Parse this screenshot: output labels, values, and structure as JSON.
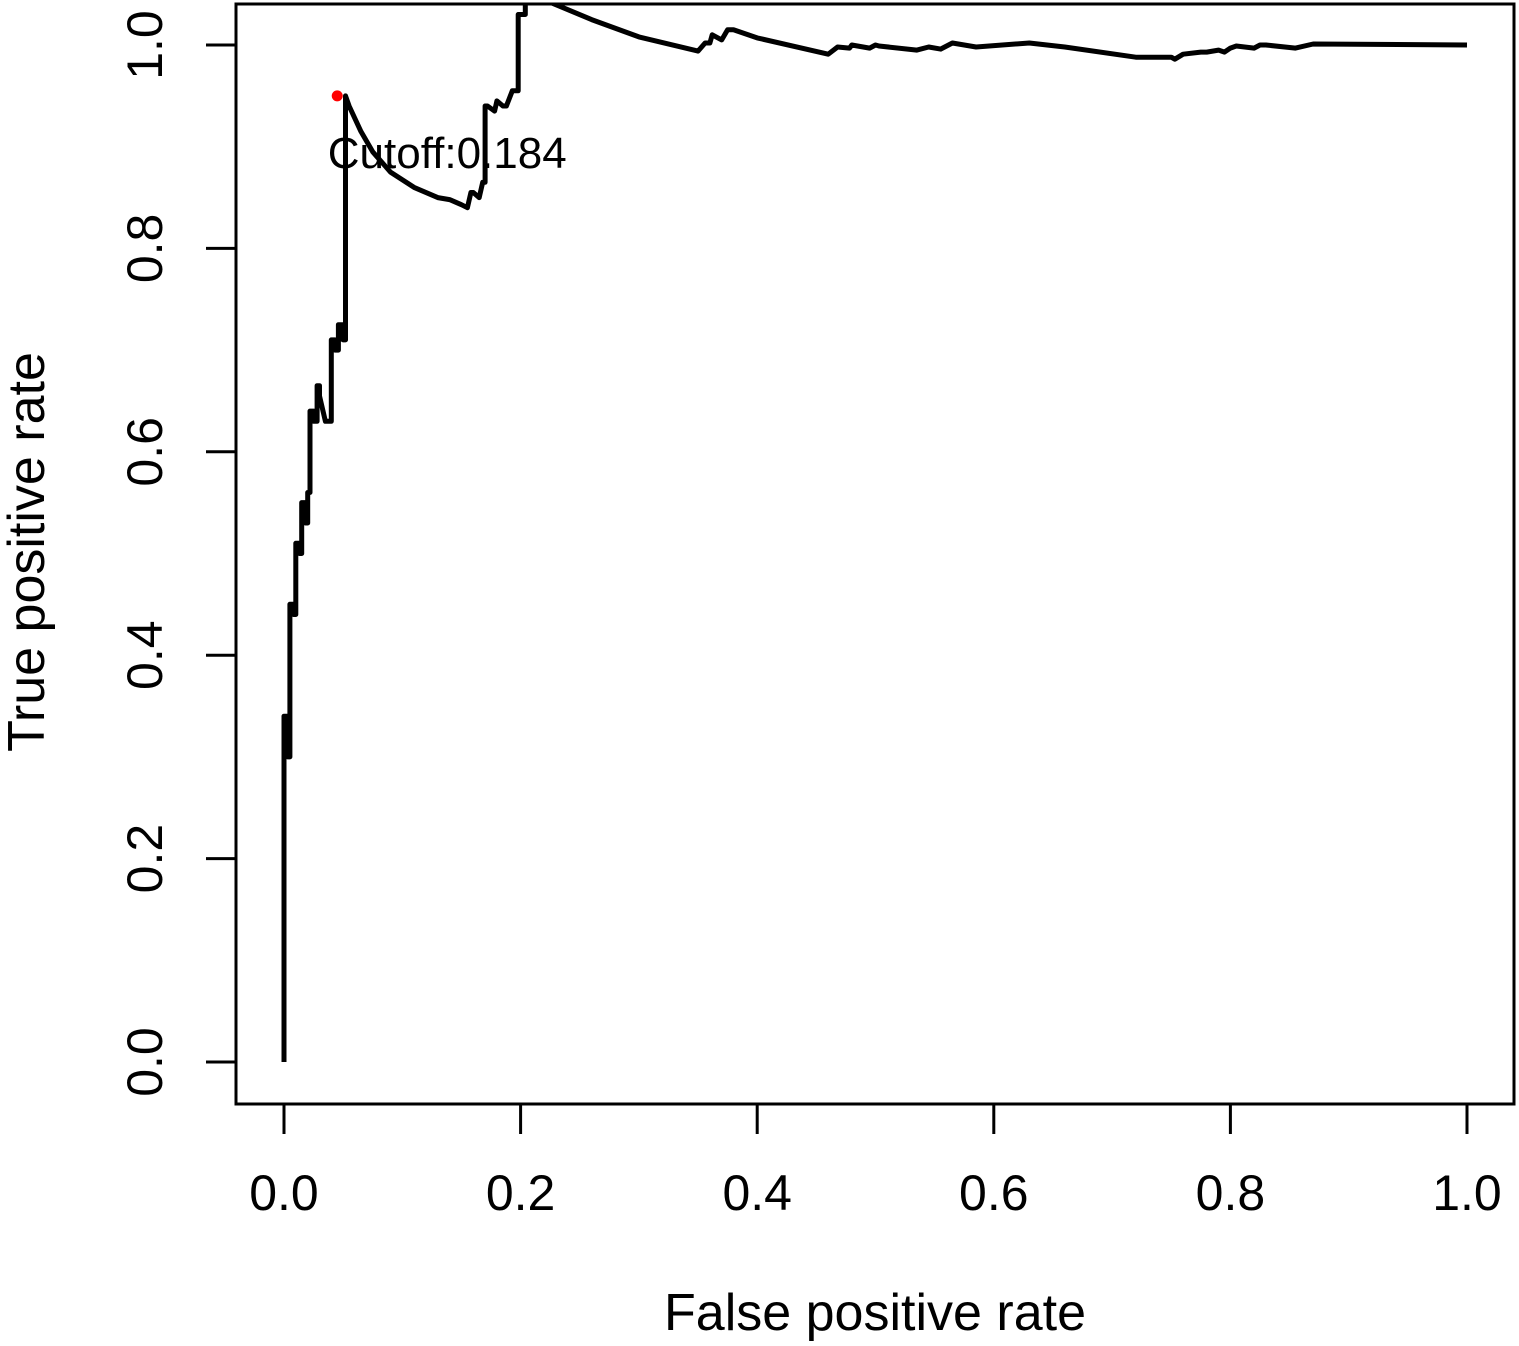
{
  "chart_data": {
    "type": "line",
    "title": "",
    "xlabel": "False positive rate",
    "ylabel": "True positive rate",
    "xlim": [
      0.0,
      1.0
    ],
    "ylim": [
      0.0,
      1.0
    ],
    "x_ticks": [
      "0.0",
      "0.2",
      "0.4",
      "0.6",
      "0.8",
      "1.0"
    ],
    "y_ticks": [
      "0.0",
      "0.2",
      "0.4",
      "0.6",
      "0.8",
      "1.0"
    ],
    "grid": false,
    "legend": "none",
    "line_color": "#000000",
    "series": [
      {
        "x": [
          0.0,
          0.0,
          0.003,
          0.003,
          0.005,
          0.005,
          0.008,
          0.008,
          0.01,
          0.01,
          0.013,
          0.013,
          0.015,
          0.015,
          0.018,
          0.018,
          0.02,
          0.02,
          0.022,
          0.022,
          0.025,
          0.025,
          0.028,
          0.028,
          0.03,
          0.03,
          0.035,
          0.04,
          0.04,
          0.043,
          0.043,
          0.046,
          0.046,
          0.05,
          0.05,
          0.052,
          0.052,
          0.055,
          0.065,
          0.075,
          0.09,
          0.11,
          0.13,
          0.14,
          0.15,
          0.155,
          0.158,
          0.16,
          0.165,
          0.168,
          0.17,
          0.17,
          0.172,
          0.178,
          0.18,
          0.185,
          0.188,
          0.193,
          0.198,
          0.198,
          0.199,
          0.201,
          0.204,
          0.204,
          0.207,
          0.225,
          0.26,
          0.3,
          0.35,
          0.356,
          0.36,
          0.362,
          0.37,
          0.375,
          0.38,
          0.4,
          0.46,
          0.468,
          0.478,
          0.48,
          0.495,
          0.5,
          0.503,
          0.535,
          0.545,
          0.555,
          0.565,
          0.585,
          0.63,
          0.66,
          0.72,
          0.75,
          0.753,
          0.76,
          0.775,
          0.78,
          0.79,
          0.795,
          0.8,
          0.805,
          0.82,
          0.825,
          0.83,
          0.855,
          0.87,
          1.0
        ],
        "y": [
          0.0,
          0.34,
          0.34,
          0.3,
          0.3,
          0.45,
          0.45,
          0.44,
          0.44,
          0.51,
          0.51,
          0.5,
          0.5,
          0.55,
          0.55,
          0.53,
          0.53,
          0.56,
          0.56,
          0.64,
          0.64,
          0.63,
          0.63,
          0.665,
          0.665,
          0.655,
          0.63,
          0.63,
          0.71,
          0.71,
          0.7,
          0.7,
          0.725,
          0.725,
          0.71,
          0.71,
          0.95,
          0.94,
          0.915,
          0.895,
          0.875,
          0.86,
          0.85,
          0.848,
          0.843,
          0.84,
          0.855,
          0.855,
          0.85,
          0.865,
          0.865,
          0.94,
          0.94,
          0.935,
          0.945,
          0.94,
          0.94,
          0.955,
          0.955,
          1.03,
          1.03,
          1.03,
          1.03,
          1.04,
          1.045,
          1.042,
          1.025,
          1.008,
          0.994,
          1.002,
          1.002,
          1.01,
          1.005,
          1.015,
          1.015,
          1.007,
          0.991,
          0.998,
          0.997,
          1.0,
          0.997,
          1.0,
          0.999,
          0.995,
          0.998,
          0.996,
          1.002,
          0.998,
          1.002,
          0.998,
          0.988,
          0.988,
          0.986,
          0.991,
          0.993,
          0.993,
          0.995,
          0.993,
          0.997,
          0.999,
          0.997,
          1.0,
          1.0,
          0.997,
          1.001,
          1.0
        ]
      }
    ],
    "cutoff_point": {
      "x": 0.045,
      "y": 0.95,
      "color": "#ff0000"
    },
    "annotations": [
      {
        "text": "Cutoff:0.184",
        "x": 0.037,
        "y": 0.895
      }
    ]
  }
}
